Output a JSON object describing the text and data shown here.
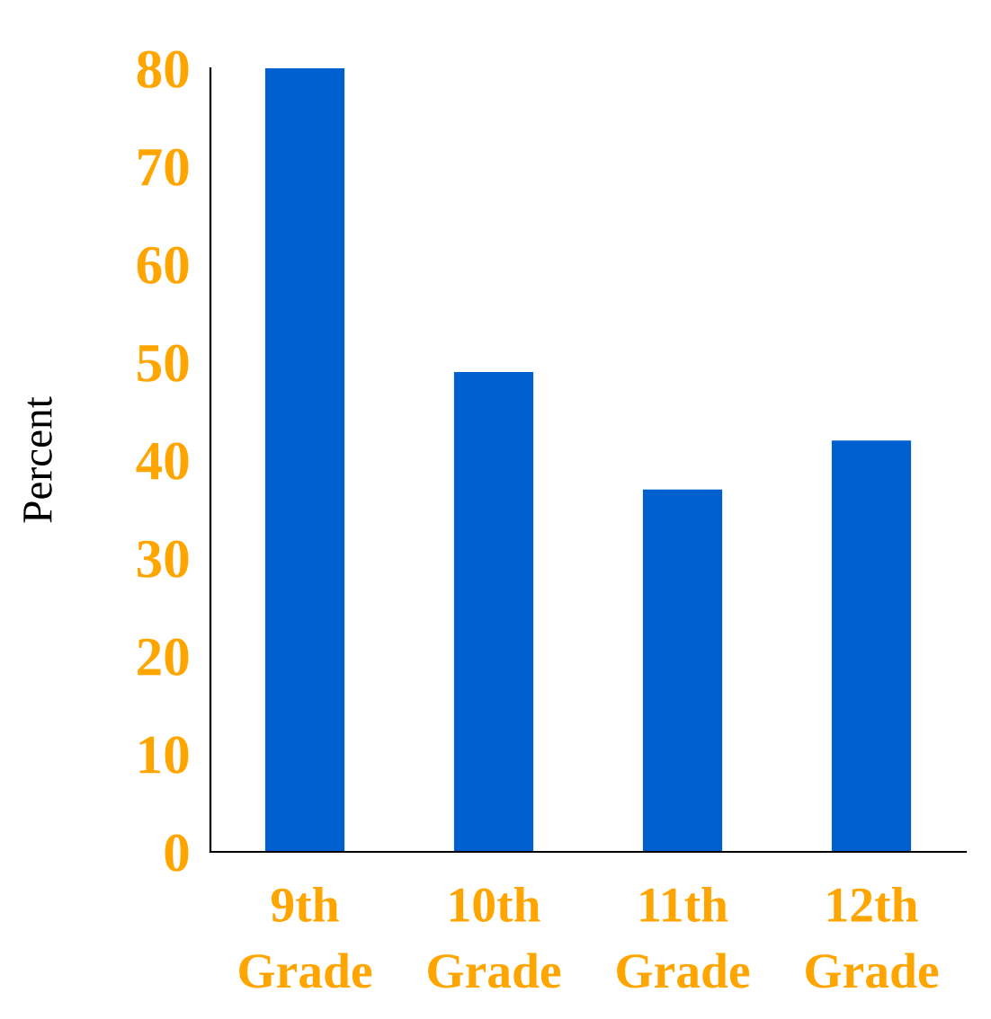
{
  "chart_data": {
    "type": "bar",
    "ylabel": "Percent",
    "categories": [
      "9th\nGrade",
      "10th\nGrade",
      "11th\nGrade",
      "12th\nGrade"
    ],
    "values": [
      80,
      49,
      37,
      42
    ],
    "color": "#0060d0",
    "ylim": [
      0,
      80
    ],
    "yticks": [
      0,
      10,
      20,
      30,
      40,
      50,
      60,
      70,
      80
    ],
    "grid": false
  }
}
